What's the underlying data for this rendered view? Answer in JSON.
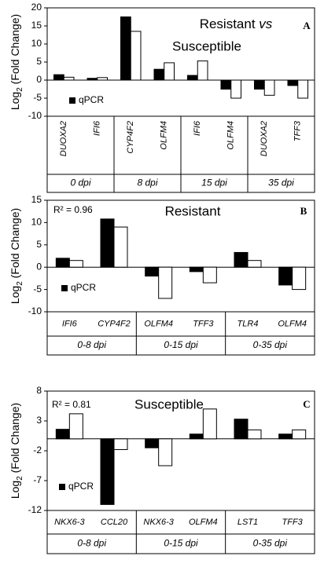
{
  "chart_data": [
    {
      "type": "bar",
      "title": [
        "Resistant",
        "vs",
        "Susceptible"
      ],
      "panel_label": "A",
      "categories": [
        "DUOXA2",
        "IFI6",
        "CYP4F2",
        "OLFM4",
        "IFI6",
        "OLFM4",
        "DUOXA2",
        "TFF3"
      ],
      "groups": [
        "0 dpi",
        "8 dpi",
        "15 dpi",
        "35 dpi"
      ],
      "series": [
        {
          "name": "qPCR",
          "color": "#000000",
          "values": [
            1.5,
            0.5,
            17.5,
            3,
            1.3,
            -2.5,
            -2.5,
            -1.5
          ]
        },
        {
          "color": "#ffffff",
          "values": [
            0.8,
            0.7,
            13.5,
            4.8,
            5.3,
            -5,
            -4.2,
            -5
          ]
        }
      ],
      "ylim": [
        -10,
        20
      ],
      "yticks": [
        -10,
        -5,
        0,
        5,
        10,
        15,
        20
      ],
      "ylabel": [
        "Log",
        "2",
        " (Fold Change)"
      ],
      "legend": "lower left"
    },
    {
      "type": "bar",
      "title": [
        "Resistant"
      ],
      "panel_label": "B",
      "annotation": "R² = 0.96",
      "categories": [
        "IFI6",
        "CYP4F2",
        "OLFM4",
        "TFF3",
        "TLR4",
        "OLFM4"
      ],
      "groups": [
        "0-8 dpi",
        "0-15 dpi",
        "0-35 dpi"
      ],
      "series": [
        {
          "name": "qPCR",
          "color": "#000000",
          "values": [
            2,
            10.8,
            -2,
            -1,
            3.3,
            -4
          ]
        },
        {
          "color": "#ffffff",
          "values": [
            1.5,
            9,
            -7,
            -3.5,
            1.5,
            -5
          ]
        }
      ],
      "ylim": [
        -10,
        15
      ],
      "yticks": [
        -10,
        -5,
        0,
        5,
        10,
        15
      ],
      "ylabel": [
        "Log",
        "2",
        " (Fold Change)"
      ],
      "legend": "lower left"
    },
    {
      "type": "bar",
      "title": [
        "Susceptible"
      ],
      "panel_label": "C",
      "annotation": "R² = 0.81",
      "categories": [
        "NKX6-3",
        "CCL20",
        "NKX6-3",
        "OLFM4",
        "LST1",
        "TFF3"
      ],
      "groups": [
        "0-8 dpi",
        "0-15 dpi",
        "0-35 dpi"
      ],
      "series": [
        {
          "name": "qPCR",
          "color": "#000000",
          "values": [
            1.6,
            -11,
            -1.5,
            0.8,
            3.3,
            0.8
          ]
        },
        {
          "color": "#ffffff",
          "values": [
            4.2,
            -1.8,
            -4.5,
            5,
            1.5,
            1.5
          ]
        }
      ],
      "ylim": [
        -12,
        8
      ],
      "yticks": [
        -12,
        -7,
        -2,
        3,
        8
      ],
      "ylabel": [
        "Log",
        "2",
        " (Fold Change)"
      ],
      "legend": "lower left"
    }
  ]
}
